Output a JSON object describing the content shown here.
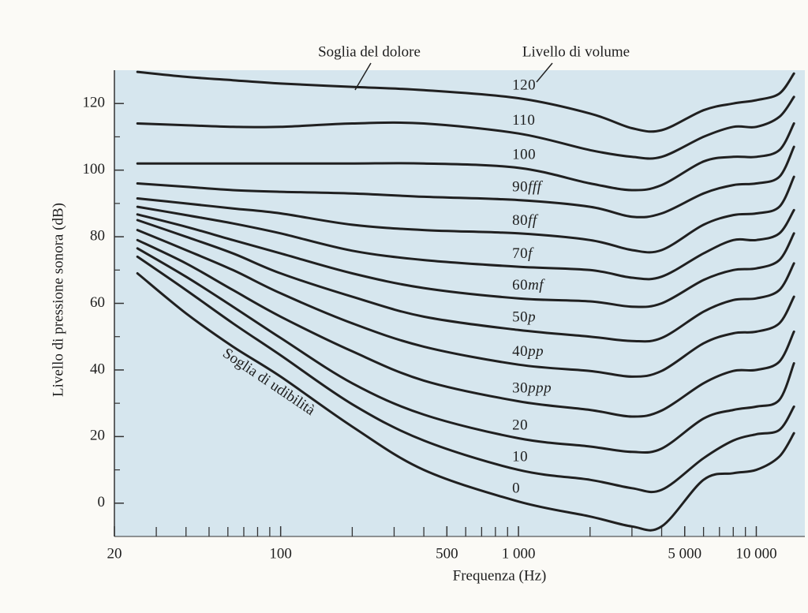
{
  "chart_data": {
    "type": "line",
    "title_left": "Soglia del dolore",
    "title_right": "Livello di volume",
    "threshold_label": "Soglia di udibilità",
    "xlabel": "Frequenza (Hz)",
    "ylabel": "Livello di pressione sonora (dB)",
    "log_x": true,
    "background": "#d6e6ee",
    "line_color": "#202020",
    "xlim": [
      20,
      16000
    ],
    "ylim": [
      -10,
      130
    ],
    "xticks": [
      20,
      100,
      500,
      {
        "value": 1000,
        "label": "1 000"
      },
      {
        "value": 5000,
        "label": "5 000"
      },
      {
        "value": 10000,
        "label": "10 000"
      }
    ],
    "xminorticks": [
      30,
      40,
      50,
      60,
      70,
      80,
      90,
      200,
      300,
      400,
      600,
      700,
      800,
      900,
      2000,
      3000,
      4000,
      6000,
      7000,
      8000,
      9000
    ],
    "yticks": [
      0,
      20,
      40,
      60,
      80,
      100,
      120
    ],
    "yminorticks": [
      10,
      30,
      50,
      70,
      90,
      110
    ],
    "x": [
      25,
      40,
      63,
      100,
      200,
      400,
      1000,
      2000,
      3000,
      4000,
      6000,
      8000,
      10000,
      12500,
      14400
    ],
    "series": [
      {
        "name": "120",
        "values": [
          129.5,
          128,
          127,
          126,
          125,
          124,
          121.6,
          117,
          112.6,
          112,
          118,
          120,
          121,
          123,
          129
        ]
      },
      {
        "name": "110",
        "values": [
          114,
          113.5,
          113,
          113,
          114,
          114,
          111,
          106,
          104,
          104,
          110,
          113,
          113,
          116,
          122
        ]
      },
      {
        "name": "100",
        "values": [
          102,
          102,
          102,
          102,
          102,
          102,
          100.7,
          96,
          94,
          95.5,
          102.6,
          104,
          104,
          106,
          114
        ]
      },
      {
        "name": "90",
        "dynamic": "fff",
        "values": [
          96,
          95,
          94,
          93.5,
          93,
          92,
          91,
          89,
          86,
          87,
          93,
          95.5,
          96,
          98,
          107
        ]
      },
      {
        "name": "80",
        "dynamic": "ff",
        "values": [
          91.5,
          90,
          88.5,
          87,
          83.6,
          82,
          81,
          79,
          76,
          76,
          83.6,
          86.5,
          87,
          89,
          98
        ]
      },
      {
        "name": "70",
        "dynamic": "f",
        "values": [
          89,
          86.5,
          84,
          81,
          75.8,
          73,
          71,
          70,
          67.7,
          68,
          75,
          79,
          79,
          81,
          88
        ]
      },
      {
        "name": "60",
        "dynamic": "mf",
        "values": [
          86.7,
          83,
          79,
          75,
          69,
          64.6,
          61.5,
          60.6,
          59,
          60,
          67,
          70,
          70.5,
          73,
          81
        ]
      },
      {
        "name": "50",
        "dynamic": "p",
        "values": [
          85,
          80,
          75,
          69,
          62,
          56,
          52,
          50,
          48.7,
          49.6,
          57.5,
          61,
          61.5,
          64,
          72
        ]
      },
      {
        "name": "40",
        "dynamic": "pp",
        "values": [
          82,
          76,
          70,
          63,
          54,
          47,
          41.6,
          39.7,
          38,
          39.7,
          48,
          51,
          51.5,
          54,
          62
        ]
      },
      {
        "name": "30",
        "dynamic": "ppp",
        "values": [
          79,
          72,
          64,
          56,
          45.6,
          36.8,
          30.6,
          28,
          26,
          27.8,
          36,
          39.7,
          40,
          42.5,
          51.5
        ]
      },
      {
        "name": "20",
        "values": [
          76.5,
          68,
          59,
          49.6,
          36,
          26.6,
          19.5,
          17,
          15.4,
          16.4,
          25.4,
          28,
          29,
          31,
          42
        ]
      },
      {
        "name": "10",
        "values": [
          74,
          64,
          54,
          44.4,
          29.7,
          18.8,
          10,
          7,
          4.5,
          4,
          13.5,
          18.8,
          20.7,
          22,
          29
        ]
      },
      {
        "name": "0",
        "values": [
          69,
          57,
          47,
          38,
          23,
          10,
          0.5,
          -4,
          -7,
          -7,
          7,
          9,
          10,
          14,
          21
        ]
      }
    ]
  }
}
